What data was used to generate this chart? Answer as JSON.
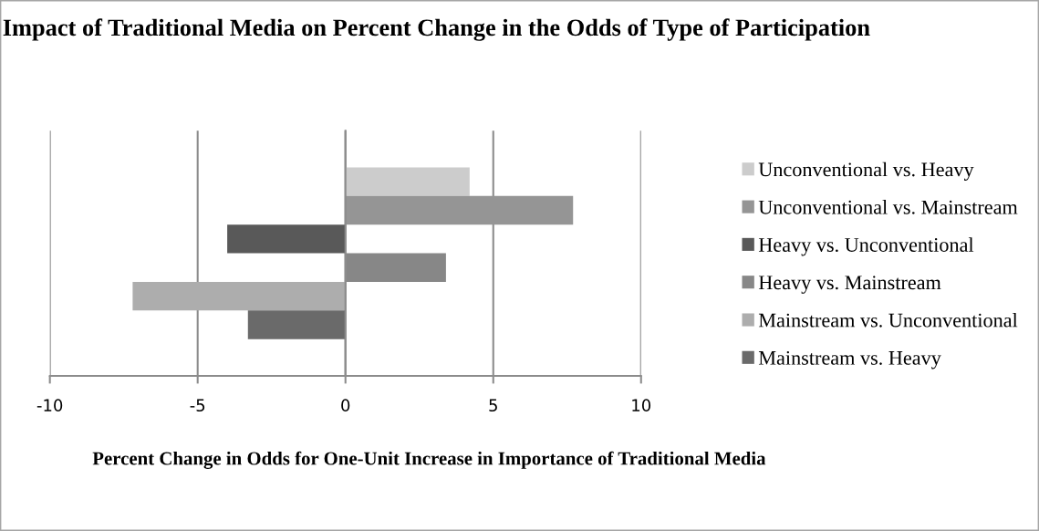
{
  "chart_data": {
    "type": "bar",
    "orientation": "horizontal",
    "title": "Impact of Traditional Media on Percent Change in the Odds of Type of Participation",
    "xlabel": "Percent Change in Odds for One-Unit Increase in Importance of Traditional Media",
    "categories": [
      null
    ],
    "series": [
      {
        "name": "Unconventional vs. Heavy",
        "color": "#cccccc",
        "values": [
          4.2
        ]
      },
      {
        "name": "Unconventional vs. Mainstream",
        "color": "#959595",
        "values": [
          7.7
        ]
      },
      {
        "name": "Heavy vs. Unconventional",
        "color": "#595959",
        "values": [
          -4.0
        ]
      },
      {
        "name": "Heavy vs. Mainstream",
        "color": "#878787",
        "values": [
          3.4
        ]
      },
      {
        "name": "Mainstream vs. Unconventional",
        "color": "#adadad",
        "values": [
          -7.2
        ]
      },
      {
        "name": "Mainstream vs. Heavy",
        "color": "#6a6a6a",
        "values": [
          -3.3
        ]
      }
    ],
    "xlim": [
      -10,
      10
    ],
    "xticks": [
      -10,
      -5,
      0,
      5,
      10
    ],
    "grid": "x",
    "legend": "right"
  }
}
